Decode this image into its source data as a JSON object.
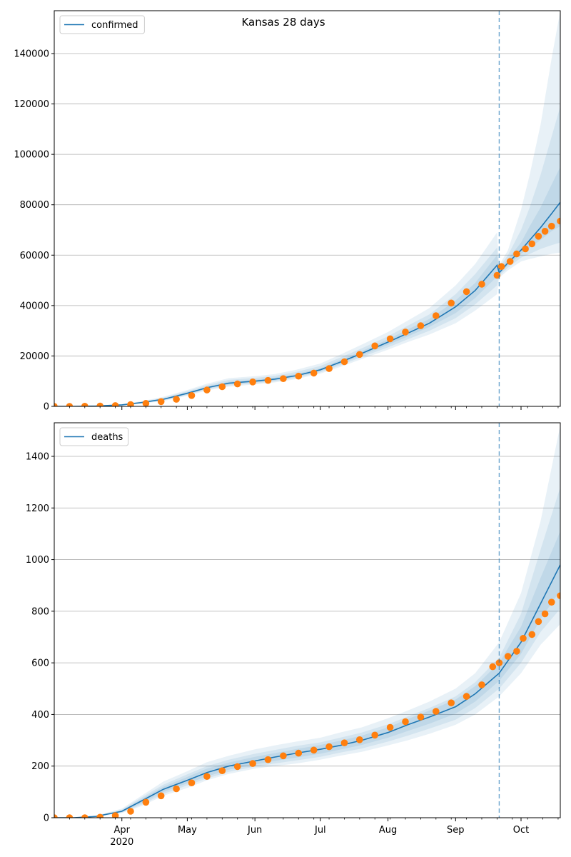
{
  "figure": {
    "title": "Kansas 28 days"
  },
  "colors": {
    "model_line": "#1f77b4",
    "observed_points": "#ff7f0e",
    "band": "#1f77b4",
    "forecast_start_line": "#1f77b4",
    "grid": "#b0b0b0"
  },
  "x_axis": {
    "start": "2020-03-01",
    "end": "2020-10-19",
    "forecast_start": "2020-09-21",
    "month_ticks": [
      {
        "date": "2020-04-01",
        "label": "Apr",
        "year": "2020"
      },
      {
        "date": "2020-05-01",
        "label": "May"
      },
      {
        "date": "2020-06-01",
        "label": "Jun"
      },
      {
        "date": "2020-07-01",
        "label": "Jul"
      },
      {
        "date": "2020-08-01",
        "label": "Aug"
      },
      {
        "date": "2020-09-01",
        "label": "Sep"
      },
      {
        "date": "2020-10-01",
        "label": "Oct"
      }
    ]
  },
  "chart_data": [
    {
      "type": "line",
      "legend": "confirmed",
      "legend_position": "top-left",
      "grid": "y",
      "ylim": [
        0,
        157000
      ],
      "yticks": [
        0,
        20000,
        40000,
        60000,
        80000,
        100000,
        120000,
        140000
      ],
      "ytick_labels": [
        "0",
        "20000",
        "40000",
        "60000",
        "80000",
        "100000",
        "120000",
        "140000"
      ],
      "model_line": {
        "x": [
          "2020-03-01",
          "2020-03-10",
          "2020-03-20",
          "2020-04-01",
          "2020-04-10",
          "2020-04-20",
          "2020-05-01",
          "2020-05-10",
          "2020-05-20",
          "2020-06-01",
          "2020-06-10",
          "2020-06-20",
          "2020-07-01",
          "2020-07-10",
          "2020-07-20",
          "2020-08-01",
          "2020-08-10",
          "2020-08-20",
          "2020-09-01",
          "2020-09-10",
          "2020-09-20",
          "2020-09-21",
          "2020-09-25",
          "2020-10-01",
          "2020-10-05",
          "2020-10-10",
          "2020-10-15",
          "2020-10-19"
        ],
        "y": [
          0,
          0,
          100,
          600,
          1500,
          2800,
          5200,
          7400,
          9200,
          10000,
          10800,
          12200,
          14500,
          17500,
          21000,
          25500,
          29000,
          33000,
          39500,
          46000,
          56000,
          53000,
          57000,
          62000,
          66000,
          71000,
          76500,
          81000
        ]
      },
      "bands": [
        {
          "lo": [
            0,
            0,
            50,
            400,
            1100,
            2100,
            4200,
            6300,
            7800,
            8700,
            9500,
            10800,
            13000,
            15600,
            18800,
            22500,
            25500,
            28500,
            33000,
            38000,
            44500,
            51000,
            54000,
            57500,
            58500,
            59500,
            60500,
            61000
          ],
          "hi": [
            0,
            0,
            200,
            900,
            2000,
            3800,
            6500,
            9000,
            11200,
            12000,
            12800,
            14500,
            17000,
            20500,
            24500,
            29500,
            34000,
            39000,
            48000,
            56500,
            69000,
            56000,
            62000,
            78000,
            92000,
            112000,
            138000,
            157000
          ]
        },
        {
          "lo": [
            0,
            0,
            60,
            460,
            1250,
            2350,
            4500,
            6700,
            8300,
            9100,
            9900,
            11300,
            13500,
            16200,
            19600,
            23400,
            26600,
            30000,
            35000,
            40500,
            48000,
            51800,
            55000,
            59000,
            60500,
            62500,
            64000,
            65000
          ],
          "hi": [
            0,
            0,
            160,
            780,
            1800,
            3400,
            6000,
            8400,
            10500,
            11300,
            12100,
            13700,
            16000,
            19300,
            23000,
            27800,
            32000,
            36500,
            44500,
            52500,
            63000,
            55200,
            60000,
            70000,
            79000,
            92000,
            107000,
            119000
          ]
        },
        {
          "lo": [
            0,
            0,
            70,
            520,
            1350,
            2550,
            4800,
            7000,
            8700,
            9500,
            10300,
            11700,
            14000,
            16800,
            20300,
            24400,
            27700,
            31500,
            37000,
            43000,
            51500,
            52400,
            56000,
            60500,
            63000,
            66000,
            69500,
            71500
          ],
          "hi": [
            0,
            0,
            130,
            680,
            1650,
            3050,
            5600,
            7800,
            9800,
            10600,
            11400,
            12800,
            15100,
            18300,
            21900,
            26600,
            30500,
            34700,
            42000,
            49000,
            60000,
            54200,
            58500,
            65000,
            71500,
            79000,
            88000,
            95000
          ]
        }
      ],
      "observed": [
        {
          "x": "2020-03-01",
          "y": 0
        },
        {
          "x": "2020-03-08",
          "y": 0
        },
        {
          "x": "2020-03-15",
          "y": 50
        },
        {
          "x": "2020-03-22",
          "y": 150
        },
        {
          "x": "2020-03-29",
          "y": 300
        },
        {
          "x": "2020-04-05",
          "y": 700
        },
        {
          "x": "2020-04-12",
          "y": 1200
        },
        {
          "x": "2020-04-19",
          "y": 1900
        },
        {
          "x": "2020-04-26",
          "y": 2800
        },
        {
          "x": "2020-05-03",
          "y": 4300
        },
        {
          "x": "2020-05-10",
          "y": 6500
        },
        {
          "x": "2020-05-17",
          "y": 7800
        },
        {
          "x": "2020-05-24",
          "y": 8900
        },
        {
          "x": "2020-05-31",
          "y": 9700
        },
        {
          "x": "2020-06-07",
          "y": 10300
        },
        {
          "x": "2020-06-14",
          "y": 11000
        },
        {
          "x": "2020-06-21",
          "y": 12000
        },
        {
          "x": "2020-06-28",
          "y": 13200
        },
        {
          "x": "2020-07-05",
          "y": 15000
        },
        {
          "x": "2020-07-12",
          "y": 17700
        },
        {
          "x": "2020-07-19",
          "y": 20600
        },
        {
          "x": "2020-07-26",
          "y": 24000
        },
        {
          "x": "2020-08-02",
          "y": 26800
        },
        {
          "x": "2020-08-09",
          "y": 29500
        },
        {
          "x": "2020-08-16",
          "y": 32000
        },
        {
          "x": "2020-08-23",
          "y": 36000
        },
        {
          "x": "2020-08-30",
          "y": 41000
        },
        {
          "x": "2020-09-06",
          "y": 45500
        },
        {
          "x": "2020-09-13",
          "y": 48500
        },
        {
          "x": "2020-09-20",
          "y": 52000
        },
        {
          "x": "2020-09-22",
          "y": 55500
        },
        {
          "x": "2020-09-26",
          "y": 57500
        },
        {
          "x": "2020-09-29",
          "y": 60500
        },
        {
          "x": "2020-10-03",
          "y": 62500
        },
        {
          "x": "2020-10-06",
          "y": 64500
        },
        {
          "x": "2020-10-09",
          "y": 67500
        },
        {
          "x": "2020-10-12",
          "y": 69500
        },
        {
          "x": "2020-10-15",
          "y": 71500
        },
        {
          "x": "2020-10-19",
          "y": 73500
        }
      ]
    },
    {
      "type": "line",
      "legend": "deaths",
      "legend_position": "top-left",
      "grid": "y",
      "ylim": [
        0,
        1530
      ],
      "yticks": [
        0,
        200,
        400,
        600,
        800,
        1000,
        1200,
        1400
      ],
      "ytick_labels": [
        "0",
        "200",
        "400",
        "600",
        "800",
        "1000",
        "1200",
        "1400"
      ],
      "model_line": {
        "x": [
          "2020-03-01",
          "2020-03-10",
          "2020-03-20",
          "2020-04-01",
          "2020-04-10",
          "2020-04-20",
          "2020-05-01",
          "2020-05-10",
          "2020-05-20",
          "2020-06-01",
          "2020-06-10",
          "2020-06-20",
          "2020-07-01",
          "2020-07-10",
          "2020-07-20",
          "2020-08-01",
          "2020-08-10",
          "2020-08-20",
          "2020-09-01",
          "2020-09-10",
          "2020-09-21",
          "2020-10-01",
          "2020-10-10",
          "2020-10-19"
        ],
        "y": [
          0,
          0,
          5,
          25,
          65,
          110,
          145,
          175,
          200,
          220,
          235,
          250,
          265,
          280,
          300,
          330,
          360,
          390,
          430,
          480,
          560,
          680,
          830,
          980
        ]
      },
      "bands": [
        {
          "lo": [
            0,
            0,
            3,
            18,
            45,
            85,
            115,
            145,
            170,
            190,
            200,
            210,
            225,
            240,
            255,
            280,
            300,
            325,
            360,
            400,
            470,
            560,
            670,
            750
          ],
          "hi": [
            0,
            0,
            8,
            35,
            85,
            140,
            180,
            215,
            240,
            265,
            280,
            295,
            310,
            330,
            350,
            385,
            415,
            450,
            500,
            560,
            680,
            870,
            1150,
            1520
          ]
        },
        {
          "lo": [
            0,
            0,
            4,
            20,
            50,
            92,
            125,
            152,
            178,
            198,
            210,
            222,
            236,
            252,
            268,
            295,
            318,
            345,
            380,
            425,
            500,
            600,
            720,
            810
          ],
          "hi": [
            0,
            0,
            7,
            31,
            78,
            128,
            168,
            200,
            225,
            248,
            262,
            278,
            292,
            310,
            330,
            362,
            392,
            425,
            470,
            525,
            620,
            790,
            1040,
            1280
          ]
        },
        {
          "lo": [
            0,
            0,
            4,
            22,
            56,
            100,
            133,
            160,
            186,
            206,
            220,
            233,
            248,
            264,
            282,
            310,
            336,
            364,
            403,
            450,
            530,
            635,
            770,
            880
          ],
          "hi": [
            0,
            0,
            6,
            28,
            72,
            120,
            158,
            190,
            214,
            236,
            250,
            266,
            282,
            298,
            318,
            350,
            382,
            415,
            458,
            510,
            600,
            740,
            930,
            1110
          ]
        }
      ],
      "observed": [
        {
          "x": "2020-03-01",
          "y": 0
        },
        {
          "x": "2020-03-08",
          "y": 0
        },
        {
          "x": "2020-03-15",
          "y": 0
        },
        {
          "x": "2020-03-22",
          "y": 2
        },
        {
          "x": "2020-03-29",
          "y": 8
        },
        {
          "x": "2020-04-05",
          "y": 25
        },
        {
          "x": "2020-04-12",
          "y": 60
        },
        {
          "x": "2020-04-19",
          "y": 85
        },
        {
          "x": "2020-04-26",
          "y": 112
        },
        {
          "x": "2020-05-03",
          "y": 135
        },
        {
          "x": "2020-05-10",
          "y": 160
        },
        {
          "x": "2020-05-17",
          "y": 182
        },
        {
          "x": "2020-05-24",
          "y": 198
        },
        {
          "x": "2020-05-31",
          "y": 210
        },
        {
          "x": "2020-06-07",
          "y": 225
        },
        {
          "x": "2020-06-14",
          "y": 240
        },
        {
          "x": "2020-06-21",
          "y": 250
        },
        {
          "x": "2020-06-28",
          "y": 262
        },
        {
          "x": "2020-07-05",
          "y": 275
        },
        {
          "x": "2020-07-12",
          "y": 290
        },
        {
          "x": "2020-07-19",
          "y": 302
        },
        {
          "x": "2020-07-26",
          "y": 320
        },
        {
          "x": "2020-08-02",
          "y": 350
        },
        {
          "x": "2020-08-09",
          "y": 372
        },
        {
          "x": "2020-08-16",
          "y": 390
        },
        {
          "x": "2020-08-23",
          "y": 412
        },
        {
          "x": "2020-08-30",
          "y": 445
        },
        {
          "x": "2020-09-06",
          "y": 470
        },
        {
          "x": "2020-09-13",
          "y": 515
        },
        {
          "x": "2020-09-18",
          "y": 585
        },
        {
          "x": "2020-09-21",
          "y": 600
        },
        {
          "x": "2020-09-25",
          "y": 625
        },
        {
          "x": "2020-09-29",
          "y": 645
        },
        {
          "x": "2020-10-02",
          "y": 695
        },
        {
          "x": "2020-10-06",
          "y": 710
        },
        {
          "x": "2020-10-09",
          "y": 760
        },
        {
          "x": "2020-10-12",
          "y": 790
        },
        {
          "x": "2020-10-15",
          "y": 835
        },
        {
          "x": "2020-10-19",
          "y": 860
        }
      ]
    }
  ]
}
